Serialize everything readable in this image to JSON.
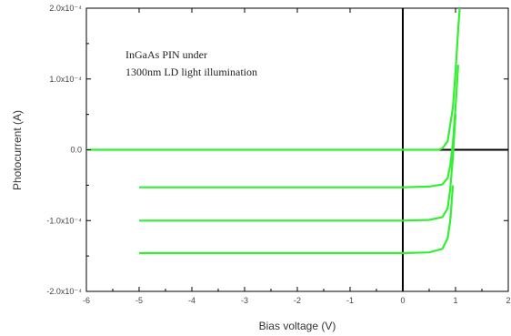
{
  "chart_data": {
    "type": "line",
    "xlabel": "Bias voltage (V)",
    "ylabel": "Photocurrent (A)",
    "xlim": [
      -6,
      2
    ],
    "ylim": [
      -0.0002,
      0.0002
    ],
    "x_ticks": [
      -6,
      -5,
      -4,
      -3,
      -2,
      -1,
      0,
      1,
      2
    ],
    "x_tick_labels": [
      "-6",
      "-5",
      "-4",
      "-3",
      "-2",
      "-1",
      "0",
      "1",
      "2"
    ],
    "y_ticks": [
      -0.0002,
      -0.0001,
      0,
      0.0001,
      0.0002
    ],
    "y_tick_labels": [
      "-2.0x10⁻⁴",
      "-1.0x10⁻⁴",
      "0.0",
      "1.0x10⁻⁴",
      "2.0x10⁻⁴"
    ],
    "annotation": [
      "InGaAs PIN under",
      "1300nm LD light illumination"
    ],
    "grid": false,
    "series": [
      {
        "color": "#33ee33",
        "x": [
          -6,
          -5,
          -3,
          -1,
          0,
          0.5,
          0.68,
          0.75,
          0.85,
          0.95,
          1.0,
          1.05,
          1.08
        ],
        "y": [
          0,
          0,
          0,
          0,
          0,
          0,
          0,
          2e-06,
          1.2e-05,
          6e-05,
          0.00011,
          0.00017,
          0.0002
        ]
      },
      {
        "color": "#33ee33",
        "x": [
          -5,
          -3,
          -1,
          0,
          0.5,
          0.75,
          0.85,
          0.9,
          0.95,
          1.0,
          1.05
        ],
        "y": [
          -5.3e-05,
          -5.3e-05,
          -5.3e-05,
          -5.3e-05,
          -5.2e-05,
          -4.9e-05,
          -4e-05,
          -2.2e-05,
          1e-05,
          6e-05,
          0.00012
        ]
      },
      {
        "color": "#33ee33",
        "x": [
          -5,
          -3,
          -1,
          0,
          0.5,
          0.75,
          0.85,
          0.9,
          0.95,
          1.0
        ],
        "y": [
          -0.0001,
          -0.0001,
          -0.0001,
          -0.0001,
          -9.9e-05,
          -9.5e-05,
          -8.3e-05,
          -5.5e-05,
          -1e-05,
          5e-05
        ]
      },
      {
        "color": "#33ee33",
        "x": [
          -5,
          -3,
          -1,
          0,
          0.5,
          0.75,
          0.85,
          0.9,
          0.95
        ],
        "y": [
          -0.000146,
          -0.000146,
          -0.000146,
          -0.000146,
          -0.000145,
          -0.00014,
          -0.000125,
          -0.0001,
          -5e-05
        ]
      }
    ]
  }
}
